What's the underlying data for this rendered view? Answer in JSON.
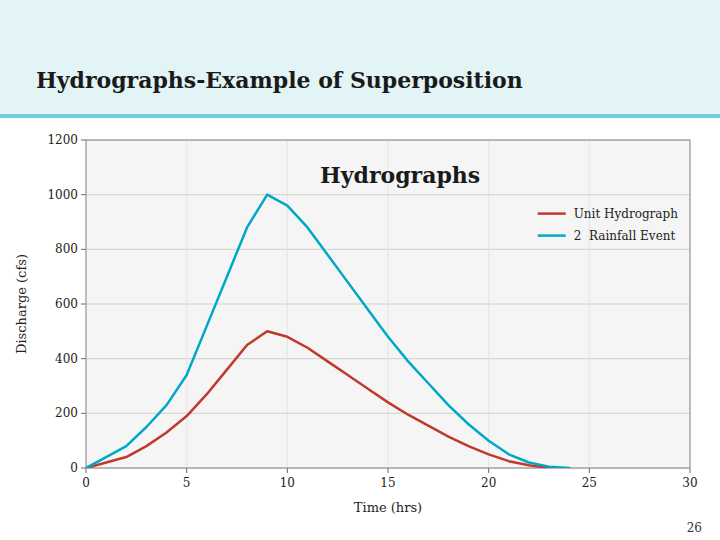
{
  "chart_data": {
    "type": "line",
    "title": "Hydrographs",
    "subtitle": "Hydrographs-Example of Superposition",
    "x_label": "Time (hrs)",
    "y_label": "Discharge (cfs)",
    "xlim": [
      0,
      30
    ],
    "ylim": [
      0,
      1200
    ],
    "xticks": [
      0,
      5,
      10,
      15,
      20,
      25,
      30
    ],
    "yticks": [
      0,
      200,
      400,
      600,
      800,
      1000,
      1200
    ],
    "grid": true,
    "legend": "upper right",
    "annotations": [
      "26"
    ],
    "series": [
      {
        "name": "Unit Hydrograph",
        "color": "#c0392b",
        "x": [
          0,
          1,
          2,
          3,
          4,
          5,
          6,
          7,
          8,
          9,
          10,
          11,
          12,
          13,
          14,
          15,
          16,
          17,
          18,
          19,
          20,
          21,
          22,
          23
        ],
        "values": [
          0,
          20,
          40,
          80,
          130,
          190,
          270,
          360,
          450,
          500,
          480,
          440,
          390,
          340,
          290,
          240,
          195,
          155,
          115,
          80,
          50,
          25,
          10,
          0
        ]
      },
      {
        "name": "2  Rainfall Event",
        "color": "#00a8c8",
        "x": [
          0,
          1,
          2,
          3,
          4,
          5,
          6,
          7,
          8,
          9,
          10,
          11,
          12,
          13,
          14,
          15,
          16,
          17,
          18,
          19,
          20,
          21,
          22,
          23,
          24
        ],
        "values": [
          0,
          40,
          80,
          150,
          230,
          340,
          520,
          700,
          880,
          1000,
          960,
          880,
          780,
          680,
          580,
          480,
          390,
          310,
          230,
          160,
          100,
          50,
          20,
          5,
          0
        ]
      }
    ]
  }
}
